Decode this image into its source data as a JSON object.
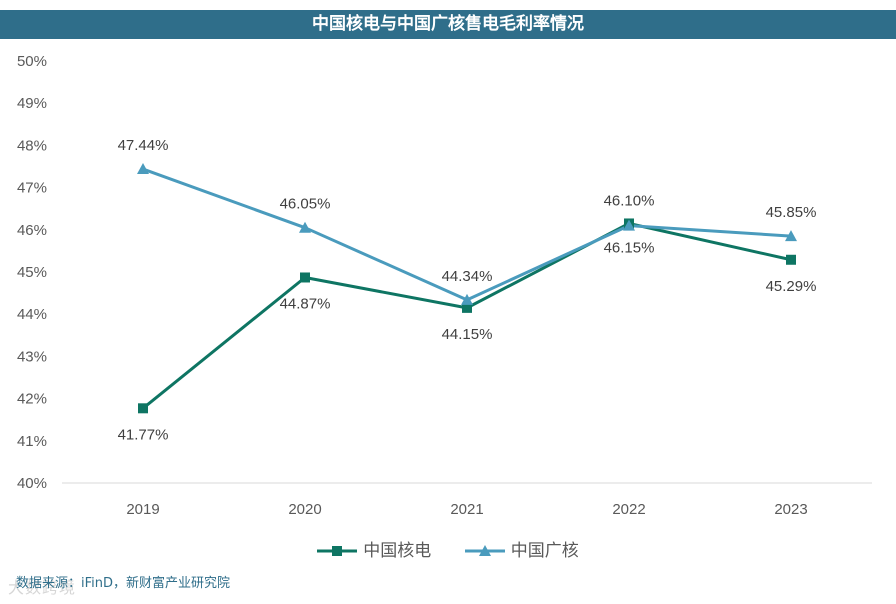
{
  "chart_data": {
    "type": "line",
    "title": "中国核电与中国广核售电毛利率情况",
    "categories": [
      "2019",
      "2020",
      "2021",
      "2022",
      "2023"
    ],
    "ylim": [
      40,
      50
    ],
    "yticks": [
      "50%",
      "49%",
      "48%",
      "47%",
      "46%",
      "45%",
      "44%",
      "43%",
      "42%",
      "41%",
      "40%"
    ],
    "ytick_values": [
      50,
      49,
      48,
      47,
      46,
      45,
      44,
      43,
      42,
      41,
      40
    ],
    "grid": false,
    "legend_position": "bottom",
    "series": [
      {
        "name": "中国核电",
        "values": [
          41.77,
          44.87,
          44.15,
          46.15,
          45.29
        ],
        "labels": [
          "41.77%",
          "44.87%",
          "44.15%",
          "46.15%",
          "45.29%"
        ],
        "color": "#0e7563",
        "marker": "square",
        "label_side": "below"
      },
      {
        "name": "中国广核",
        "values": [
          47.44,
          46.05,
          44.34,
          46.1,
          45.85
        ],
        "labels": [
          "47.44%",
          "46.05%",
          "44.34%",
          "46.10%",
          "45.85%"
        ],
        "color": "#4a9bbd",
        "marker": "triangle",
        "label_side": "above"
      }
    ]
  },
  "source": "数据来源：iFinD，新财富产业研究院",
  "watermark": "大数跨境",
  "colors": {
    "title_bg": "#2f6e8a",
    "axis": "#d9d9d9"
  }
}
